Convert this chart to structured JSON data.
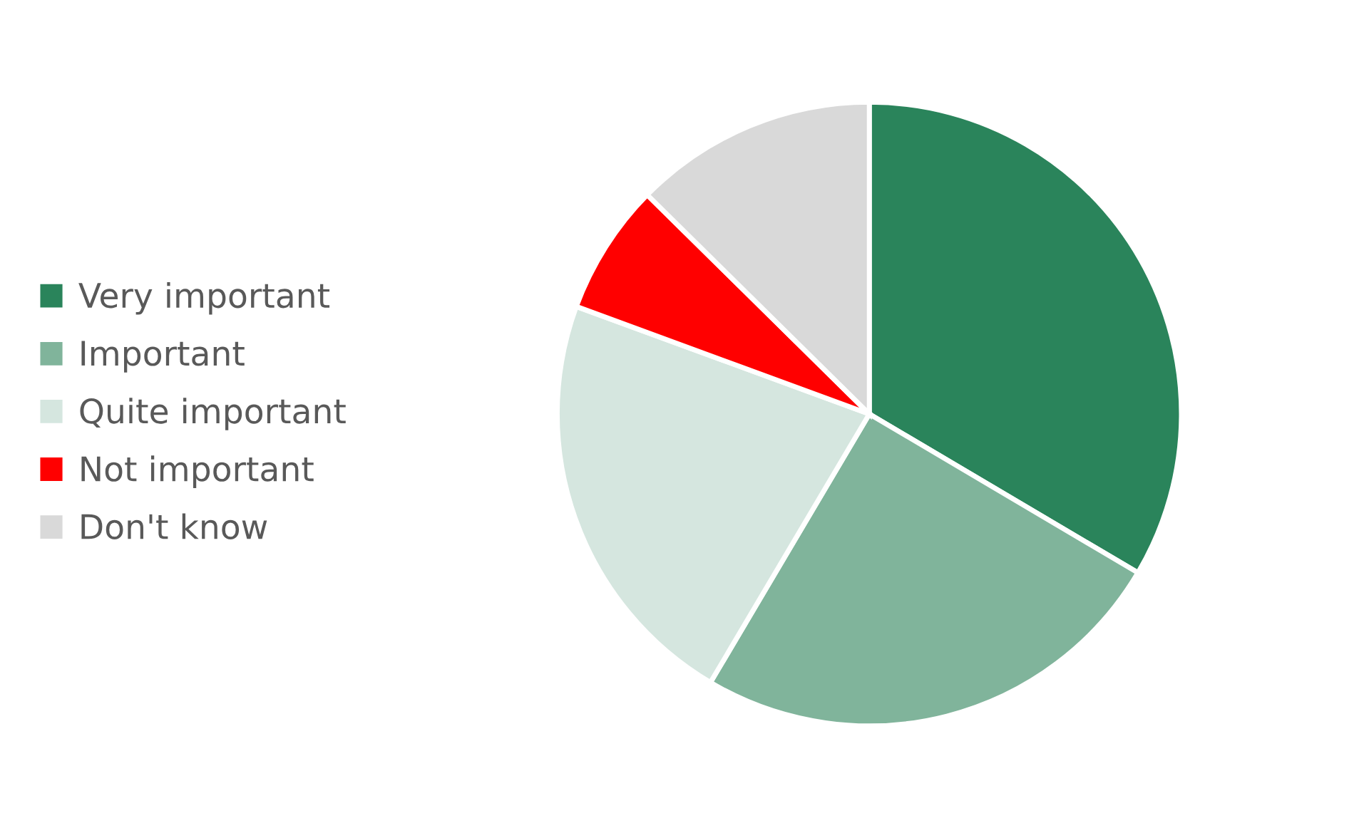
{
  "chart_data": {
    "type": "pie",
    "categories": [
      "Very important",
      "Important",
      "Quite important",
      "Not important",
      "Don't know"
    ],
    "values": [
      33.5,
      25,
      22.1,
      6.8,
      12.6
    ],
    "colors": [
      "#2a845b",
      "#80b49b",
      "#d5e6df",
      "#ff0000",
      "#d9d9d9"
    ],
    "legend": "left"
  }
}
